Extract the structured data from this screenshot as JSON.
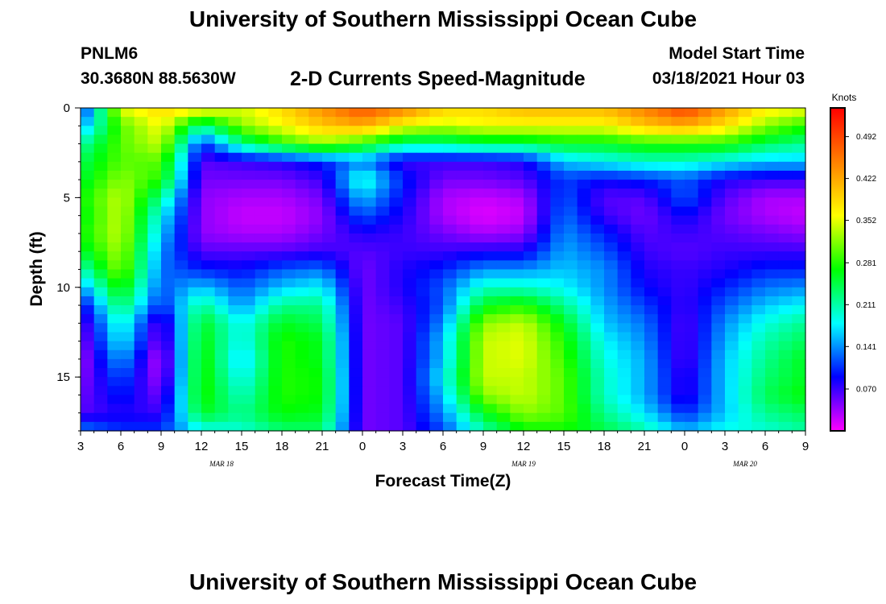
{
  "page": {
    "title_top": "University of Southern Mississippi Ocean Cube",
    "title_bottom": "University of Southern Mississippi Ocean Cube",
    "station_id": "PNLM6",
    "coordinates": "30.3680N 88.5630W",
    "subtitle": "2-D Currents Speed-Magnitude",
    "model_start_label": "Model Start Time",
    "model_start_value": "03/18/2021 Hour 03"
  },
  "colors": {
    "colormap": [
      "#ff00ff",
      "#0000ff",
      "#00ffff",
      "#00ff00",
      "#ffff00",
      "#ff8000",
      "#ff0000"
    ]
  },
  "chart_data": {
    "type": "heatmap",
    "title": "2-D Currents Speed-Magnitude",
    "xlabel": "Forecast Time(Z)",
    "ylabel": "Depth (ft)",
    "x_tick_labels": [
      "3",
      "6",
      "9",
      "12",
      "15",
      "18",
      "21",
      "0",
      "3",
      "6",
      "9",
      "12",
      "15",
      "18",
      "21",
      "0",
      "3",
      "6",
      "9"
    ],
    "x_hours": [
      3,
      6,
      9,
      12,
      15,
      18,
      21,
      24,
      27,
      30,
      33,
      36,
      39,
      42,
      45,
      48,
      51,
      54,
      57
    ],
    "x_date_labels": [
      {
        "label": "MAR 18",
        "hour": 13.5
      },
      {
        "label": "MAR 19",
        "hour": 36
      },
      {
        "label": "MAR 20",
        "hour": 52.5
      }
    ],
    "xlim": [
      3,
      57
    ],
    "y_ticks": [
      0,
      5,
      10,
      15
    ],
    "ylim": [
      0,
      18
    ],
    "y_inverted": true,
    "colorbar": {
      "title": "Knots",
      "ticks": [
        "0.492",
        "0.422",
        "0.352",
        "0.281",
        "0.211",
        "0.141",
        "0.070"
      ],
      "tick_values": [
        0.492,
        0.422,
        0.352,
        0.281,
        0.211,
        0.141,
        0.07
      ],
      "range": [
        0,
        0.54
      ]
    },
    "grid": false,
    "depth_rows": [
      0.25,
      1,
      2,
      3,
      4,
      5,
      6,
      7,
      8,
      9,
      10,
      11,
      12,
      13,
      14,
      15,
      16,
      17,
      17.75
    ],
    "hours": [
      3,
      6,
      9,
      12,
      15,
      18,
      21,
      24,
      27,
      30,
      33,
      36,
      39,
      42,
      45,
      48,
      51,
      54,
      57
    ],
    "speed_knots": [
      [
        0.1,
        0.34,
        0.38,
        0.34,
        0.34,
        0.38,
        0.43,
        0.47,
        0.43,
        0.38,
        0.38,
        0.4,
        0.4,
        0.4,
        0.44,
        0.48,
        0.42,
        0.36,
        0.34
      ],
      [
        0.14,
        0.3,
        0.36,
        0.22,
        0.32,
        0.36,
        0.4,
        0.42,
        0.36,
        0.34,
        0.36,
        0.36,
        0.36,
        0.36,
        0.4,
        0.42,
        0.38,
        0.32,
        0.28
      ],
      [
        0.21,
        0.3,
        0.34,
        0.1,
        0.22,
        0.28,
        0.32,
        0.28,
        0.22,
        0.22,
        0.24,
        0.24,
        0.26,
        0.26,
        0.28,
        0.28,
        0.28,
        0.24,
        0.22
      ],
      [
        0.24,
        0.3,
        0.3,
        0.06,
        0.07,
        0.08,
        0.1,
        0.14,
        0.07,
        0.07,
        0.07,
        0.08,
        0.16,
        0.18,
        0.2,
        0.2,
        0.18,
        0.16,
        0.16
      ],
      [
        0.25,
        0.32,
        0.28,
        0.05,
        0.05,
        0.05,
        0.07,
        0.2,
        0.1,
        0.05,
        0.05,
        0.06,
        0.11,
        0.09,
        0.1,
        0.12,
        0.08,
        0.07,
        0.07
      ],
      [
        0.27,
        0.34,
        0.22,
        0.04,
        0.03,
        0.03,
        0.05,
        0.16,
        0.09,
        0.03,
        0.02,
        0.03,
        0.12,
        0.06,
        0.06,
        0.12,
        0.06,
        0.03,
        0.03
      ],
      [
        0.26,
        0.34,
        0.18,
        0.04,
        0.02,
        0.02,
        0.04,
        0.12,
        0.08,
        0.03,
        0.01,
        0.02,
        0.13,
        0.07,
        0.05,
        0.09,
        0.05,
        0.03,
        0.02
      ],
      [
        0.27,
        0.34,
        0.16,
        0.04,
        0.03,
        0.03,
        0.05,
        0.08,
        0.07,
        0.05,
        0.03,
        0.04,
        0.14,
        0.1,
        0.06,
        0.07,
        0.06,
        0.05,
        0.04
      ],
      [
        0.25,
        0.33,
        0.14,
        0.06,
        0.06,
        0.06,
        0.07,
        0.06,
        0.07,
        0.07,
        0.08,
        0.08,
        0.15,
        0.12,
        0.07,
        0.06,
        0.07,
        0.07,
        0.07
      ],
      [
        0.2,
        0.32,
        0.13,
        0.1,
        0.09,
        0.12,
        0.13,
        0.05,
        0.08,
        0.1,
        0.14,
        0.14,
        0.16,
        0.14,
        0.08,
        0.07,
        0.08,
        0.1,
        0.1
      ],
      [
        0.14,
        0.28,
        0.12,
        0.16,
        0.12,
        0.16,
        0.18,
        0.05,
        0.08,
        0.12,
        0.2,
        0.2,
        0.18,
        0.14,
        0.09,
        0.07,
        0.1,
        0.13,
        0.14
      ],
      [
        0.08,
        0.24,
        0.1,
        0.22,
        0.14,
        0.22,
        0.22,
        0.05,
        0.07,
        0.12,
        0.26,
        0.28,
        0.22,
        0.15,
        0.11,
        0.07,
        0.12,
        0.16,
        0.18
      ],
      [
        0.05,
        0.2,
        0.05,
        0.26,
        0.18,
        0.26,
        0.24,
        0.05,
        0.06,
        0.14,
        0.32,
        0.34,
        0.26,
        0.16,
        0.13,
        0.06,
        0.14,
        0.19,
        0.22
      ],
      [
        0.04,
        0.18,
        0.04,
        0.27,
        0.18,
        0.28,
        0.26,
        0.05,
        0.06,
        0.16,
        0.34,
        0.35,
        0.28,
        0.18,
        0.14,
        0.06,
        0.15,
        0.21,
        0.24
      ],
      [
        0.03,
        0.15,
        0.02,
        0.28,
        0.16,
        0.28,
        0.26,
        0.05,
        0.06,
        0.16,
        0.34,
        0.35,
        0.29,
        0.19,
        0.15,
        0.06,
        0.16,
        0.22,
        0.26
      ],
      [
        0.04,
        0.12,
        0.03,
        0.28,
        0.18,
        0.28,
        0.27,
        0.05,
        0.06,
        0.18,
        0.34,
        0.34,
        0.3,
        0.2,
        0.15,
        0.07,
        0.16,
        0.23,
        0.26
      ],
      [
        0.05,
        0.1,
        0.05,
        0.28,
        0.2,
        0.28,
        0.27,
        0.05,
        0.06,
        0.16,
        0.32,
        0.34,
        0.3,
        0.2,
        0.15,
        0.07,
        0.16,
        0.24,
        0.27
      ],
      [
        0.06,
        0.08,
        0.07,
        0.26,
        0.22,
        0.27,
        0.26,
        0.05,
        0.06,
        0.14,
        0.26,
        0.32,
        0.3,
        0.22,
        0.17,
        0.1,
        0.16,
        0.22,
        0.24
      ],
      [
        0.12,
        0.1,
        0.1,
        0.2,
        0.2,
        0.24,
        0.24,
        0.05,
        0.06,
        0.12,
        0.22,
        0.28,
        0.28,
        0.24,
        0.2,
        0.14,
        0.18,
        0.2,
        0.22
      ]
    ]
  }
}
